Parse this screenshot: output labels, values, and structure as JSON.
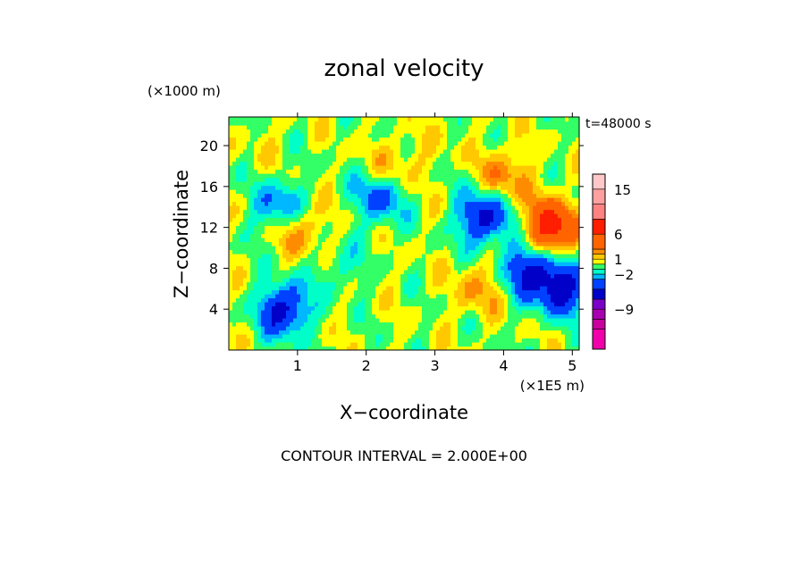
{
  "chart_data": {
    "type": "heatmap",
    "title": "zonal velocity",
    "xlabel": "X−coordinate",
    "ylabel": "Z−coordinate",
    "x_unit": "(×1E5 m)",
    "y_unit": "(×1000 m)",
    "time_label": "t=48000 s",
    "footer": "CONTOUR INTERVAL = 2.000E+00",
    "xlim": [
      0,
      5.1
    ],
    "ylim": [
      0,
      22.8
    ],
    "x_ticks": [
      {
        "value": 1,
        "label": "1"
      },
      {
        "value": 2,
        "label": "2"
      },
      {
        "value": 3,
        "label": "3"
      },
      {
        "value": 4,
        "label": "4"
      },
      {
        "value": 5,
        "label": "5"
      }
    ],
    "y_ticks": [
      {
        "value": 4,
        "label": "4"
      },
      {
        "value": 8,
        "label": "8"
      },
      {
        "value": 12,
        "label": "12"
      },
      {
        "value": 16,
        "label": "16"
      },
      {
        "value": 20,
        "label": "20"
      }
    ],
    "colorbar": {
      "levels": [
        {
          "min": -17,
          "max": -13,
          "color": "#f000a8"
        },
        {
          "min": -13,
          "max": -11,
          "color": "#c8009c"
        },
        {
          "min": -11,
          "max": -9,
          "color": "#a800b0"
        },
        {
          "min": -9,
          "max": -7,
          "color": "#7a00c8"
        },
        {
          "min": -7,
          "max": -5,
          "color": "#0000c8"
        },
        {
          "min": -5,
          "max": -3,
          "color": "#0040ff"
        },
        {
          "min": -3,
          "max": -2,
          "color": "#00b8ff"
        },
        {
          "min": -2,
          "max": -1,
          "color": "#00ffc8"
        },
        {
          "min": -1,
          "max": 0,
          "color": "#33ff66"
        },
        {
          "min": 0,
          "max": 1,
          "color": "#ffff00"
        },
        {
          "min": 1,
          "max": 2,
          "color": "#ffc800"
        },
        {
          "min": 2,
          "max": 3,
          "color": "#ff8c00"
        },
        {
          "min": 3,
          "max": 6,
          "color": "#ff6400"
        },
        {
          "min": 6,
          "max": 9,
          "color": "#ff1e00"
        },
        {
          "min": 9,
          "max": 12,
          "color": "#ff8282"
        },
        {
          "min": 12,
          "max": 15,
          "color": "#ffa0a0"
        },
        {
          "min": 15,
          "max": 18,
          "color": "#ffc8c8"
        }
      ],
      "tick_labels": [
        {
          "value": 15,
          "label": "15"
        },
        {
          "value": 6,
          "label": "6"
        },
        {
          "value": 1,
          "label": "1"
        },
        {
          "value": -2,
          "label": "−2"
        },
        {
          "value": -9,
          "label": "−9"
        }
      ]
    },
    "field_features": [
      {
        "x": 0.5,
        "z": 20,
        "value": 0.5
      },
      {
        "x": 1.0,
        "z": 12,
        "value": 3
      },
      {
        "x": 0.75,
        "z": 14,
        "value": -4
      },
      {
        "x": 0.8,
        "z": 4,
        "value": -6
      },
      {
        "x": 1.6,
        "z": 8,
        "value": -1.5
      },
      {
        "x": 2.2,
        "z": 15,
        "value": -4
      },
      {
        "x": 2.4,
        "z": 18,
        "value": 2
      },
      {
        "x": 3.1,
        "z": 20,
        "value": 0.5
      },
      {
        "x": 3.7,
        "z": 13,
        "value": -6
      },
      {
        "x": 4.0,
        "z": 17,
        "value": 3
      },
      {
        "x": 4.4,
        "z": 8,
        "value": -6
      },
      {
        "x": 4.7,
        "z": 12,
        "value": 8
      },
      {
        "x": 4.85,
        "z": 6,
        "value": -6
      },
      {
        "x": 3.6,
        "z": 6,
        "value": 2
      }
    ]
  }
}
